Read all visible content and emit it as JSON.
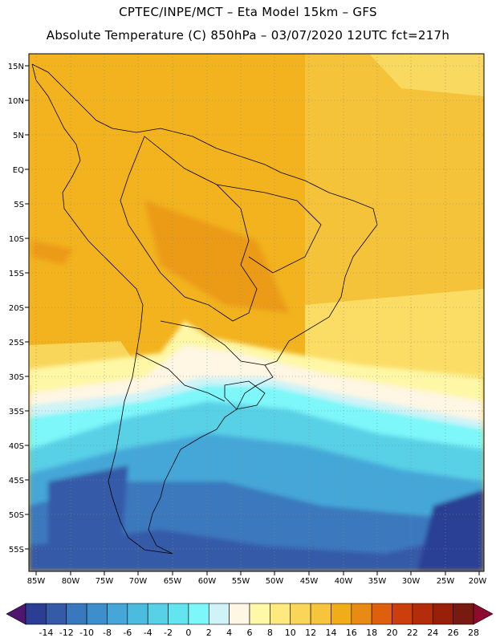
{
  "header": {
    "line1": "CPTEC/INPE/MCT –  Eta Model 15km – GFS",
    "line2": "Absolute Temperature (C) 850hPa – 03/07/2020 12UTC fct=217h"
  },
  "map": {
    "lat_labels": [
      "15N",
      "10N",
      "5N",
      "EQ",
      "5S",
      "10S",
      "15S",
      "20S",
      "25S",
      "30S",
      "35S",
      "40S",
      "45S",
      "50S",
      "55S"
    ],
    "lon_labels": [
      "85W",
      "80W",
      "75W",
      "70W",
      "65W",
      "60W",
      "55W",
      "50W",
      "45W",
      "40W",
      "35W",
      "30W",
      "25W",
      "20W"
    ],
    "gridlines": "dotted",
    "region": "South America"
  },
  "colorbar": {
    "colors": [
      "#2a3f94",
      "#355aa8",
      "#3a78bd",
      "#3d8fcc",
      "#44a7d8",
      "#4cbcde",
      "#58d0e6",
      "#63e4ee",
      "#7df7f9",
      "#cff3f7",
      "#fff6e3",
      "#fef9a8",
      "#fde97e",
      "#f9d65a",
      "#f6c43d",
      "#f1ad17",
      "#e88a14",
      "#de5f0e",
      "#cc3f0c",
      "#b32d0a",
      "#982009",
      "#781a10"
    ],
    "labels": [
      "-14",
      "-12",
      "-10",
      "-8",
      "-6",
      "-4",
      "-2",
      "0",
      "2",
      "4",
      "6",
      "8",
      "10",
      "12",
      "14",
      "16",
      "18",
      "20",
      "22",
      "24",
      "26",
      "28"
    ],
    "low_arrow": "#4f1670",
    "high_arrow": "#8e0a2e"
  }
}
